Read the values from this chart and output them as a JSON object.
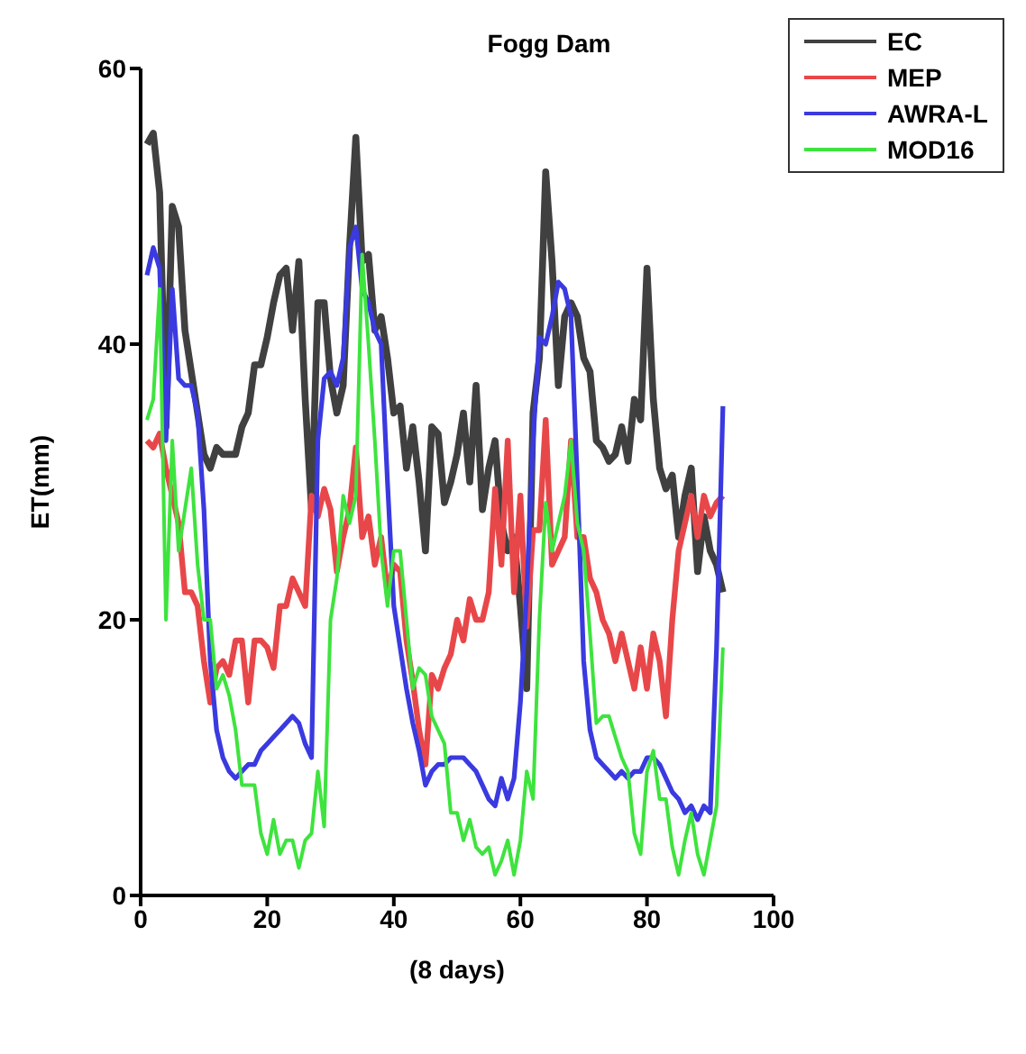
{
  "chart_data": {
    "type": "line",
    "title": "Fogg Dam",
    "xlabel": "(8 days)",
    "ylabel": "ET(mm)",
    "x": [
      1,
      2,
      3,
      4,
      5,
      6,
      7,
      8,
      9,
      10,
      11,
      12,
      13,
      14,
      15,
      16,
      17,
      18,
      19,
      20,
      21,
      22,
      23,
      24,
      25,
      26,
      27,
      28,
      29,
      30,
      31,
      32,
      33,
      34,
      35,
      36,
      37,
      38,
      39,
      40,
      41,
      42,
      43,
      44,
      45,
      46,
      47,
      48,
      49,
      50,
      51,
      52,
      53,
      54,
      55,
      56,
      57,
      58,
      59,
      60,
      61,
      62,
      63,
      64,
      65,
      66,
      67,
      68,
      69,
      70,
      71,
      72,
      73,
      74,
      75,
      76,
      77,
      78,
      79,
      80,
      81,
      82,
      83,
      84,
      85,
      86,
      87,
      88,
      89,
      90,
      91,
      92
    ],
    "series": [
      {
        "name": "EC",
        "color": "#404040",
        "values": [
          54.5,
          55.3,
          51,
          34,
          50,
          48.5,
          41,
          38,
          35,
          32,
          31,
          32.5,
          32,
          32,
          32,
          34,
          35,
          38.5,
          38.5,
          40.5,
          43,
          45,
          45.5,
          41,
          46,
          36,
          28,
          43,
          43,
          37.5,
          35,
          37,
          47,
          55,
          46,
          46.5,
          41,
          42,
          39,
          35,
          35.5,
          31,
          34,
          30,
          25,
          34,
          33.5,
          28.5,
          30,
          32,
          35,
          30,
          37,
          28,
          31,
          33,
          27,
          25,
          26,
          21,
          15,
          35,
          39,
          52.5,
          46,
          37,
          42,
          43,
          42,
          39,
          38,
          33,
          32.5,
          31.5,
          32,
          34,
          31.5,
          36,
          34.5,
          45.5,
          36,
          31,
          29.5,
          30.5,
          26,
          29,
          31,
          23.5,
          27.5,
          25,
          24,
          22
        ]
      },
      {
        "name": "MEP",
        "color": "#e8474a",
        "values": [
          33,
          32.5,
          33.5,
          31,
          29,
          27,
          22,
          22,
          21,
          17,
          14,
          16.5,
          17,
          16,
          18.5,
          18.5,
          14,
          18.5,
          18.5,
          18,
          16.5,
          21,
          21,
          23,
          22,
          21,
          29,
          27.5,
          29.5,
          28,
          23.5,
          26,
          28,
          32.5,
          26,
          27.5,
          24,
          26,
          22,
          24,
          23.5,
          18.5,
          15.5,
          12,
          9.5,
          16,
          15,
          16.5,
          17.5,
          20,
          18.5,
          21.5,
          20,
          20,
          22,
          29.5,
          24,
          33,
          22,
          29,
          19.5,
          26.5,
          26.5,
          34.5,
          24,
          25,
          26,
          33,
          26,
          26,
          23,
          22,
          20,
          19,
          17,
          19,
          17,
          15,
          18,
          15,
          19,
          17,
          13,
          20,
          25,
          27,
          29,
          26,
          29,
          27.5,
          28.5,
          29
        ]
      },
      {
        "name": "AWRA-L",
        "color": "#3a3ae0",
        "values": [
          45,
          47,
          45.5,
          33,
          44,
          37.5,
          37,
          37,
          35,
          28,
          17,
          12,
          10,
          9,
          8.5,
          9,
          9.5,
          9.5,
          10.5,
          11,
          11.5,
          12,
          12.5,
          13,
          12.5,
          11,
          10,
          33,
          37.5,
          38,
          37,
          39,
          47,
          48.5,
          44,
          43,
          41,
          40,
          30,
          21,
          18,
          15,
          12.5,
          10.5,
          8,
          9,
          9.5,
          9.5,
          10,
          10,
          10,
          9.5,
          9,
          8,
          7,
          6.5,
          8.5,
          7,
          8.5,
          14,
          22,
          33,
          40.5,
          40,
          42,
          44.5,
          44,
          42,
          30,
          17,
          12,
          10,
          9.5,
          9,
          8.5,
          9,
          8.5,
          9,
          9,
          10,
          10,
          9.5,
          8.5,
          7.5,
          7,
          6,
          6.5,
          5.5,
          6.5,
          6,
          18,
          35.5
        ]
      },
      {
        "name": "MOD16",
        "color": "#3ee33e",
        "values": [
          34.5,
          36,
          44,
          20,
          33,
          25,
          28,
          31,
          24,
          20,
          20,
          15,
          16,
          14.5,
          12,
          8,
          8,
          8,
          4.5,
          3,
          5.5,
          3,
          4,
          4,
          2,
          4,
          4.5,
          9,
          5,
          20,
          23,
          29,
          27,
          29,
          46.5,
          40,
          33,
          25,
          21,
          25,
          25,
          20,
          15,
          16.5,
          16,
          13,
          12,
          11,
          6,
          6,
          4,
          5.5,
          3.5,
          3,
          3.5,
          1.5,
          2.5,
          4,
          1.5,
          4,
          9,
          7,
          20,
          28.5,
          25,
          27,
          29,
          33,
          27,
          25,
          19,
          12.5,
          13,
          13,
          11.5,
          10,
          9,
          4.5,
          3,
          9,
          10.5,
          7,
          7,
          3.5,
          1.5,
          4,
          6,
          3,
          1.5,
          4,
          6.5,
          18
        ]
      }
    ],
    "xlim": [
      0,
      100
    ],
    "xticks": [
      0,
      20,
      40,
      60,
      80,
      100
    ],
    "ylim": [
      0,
      60
    ],
    "yticks": [
      0,
      20,
      40,
      60
    ],
    "legend": "top right",
    "grid": false,
    "marker": "none",
    "line_style": "solid"
  }
}
